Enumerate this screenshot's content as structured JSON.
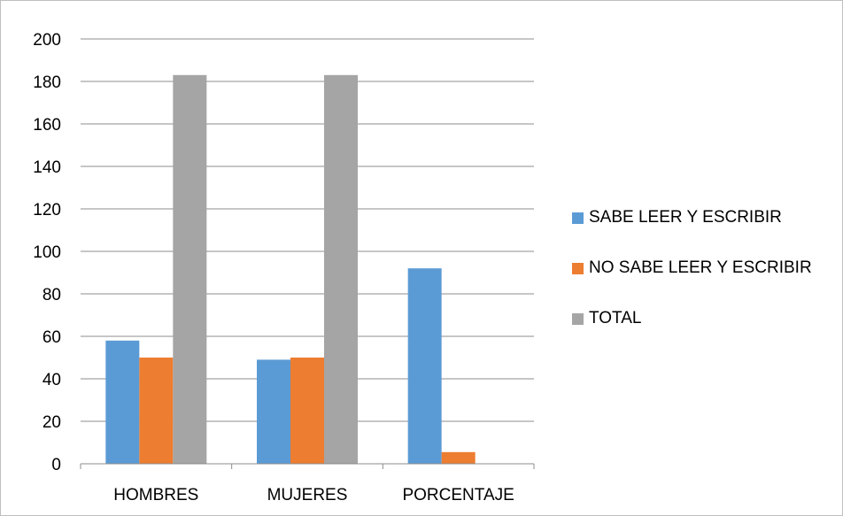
{
  "chart_data": {
    "type": "bar",
    "categories": [
      "HOMBRES",
      "MUJERES",
      "PORCENTAJE"
    ],
    "series": [
      {
        "name": "SABE LEER Y ESCRIBIR",
        "values": [
          58,
          49,
          92
        ],
        "color": "#5b9bd5"
      },
      {
        "name": "NO SABE LEER Y ESCRIBIR",
        "values": [
          50,
          50,
          5.5
        ],
        "color": "#ed7d31"
      },
      {
        "name": "TOTAL",
        "values": [
          183,
          183,
          null
        ],
        "color": "#a5a5a5"
      }
    ],
    "ylim": [
      0,
      200
    ],
    "yticks": [
      0,
      20,
      40,
      60,
      80,
      100,
      120,
      140,
      160,
      180,
      200
    ],
    "grid": true,
    "legend_position": "right"
  }
}
